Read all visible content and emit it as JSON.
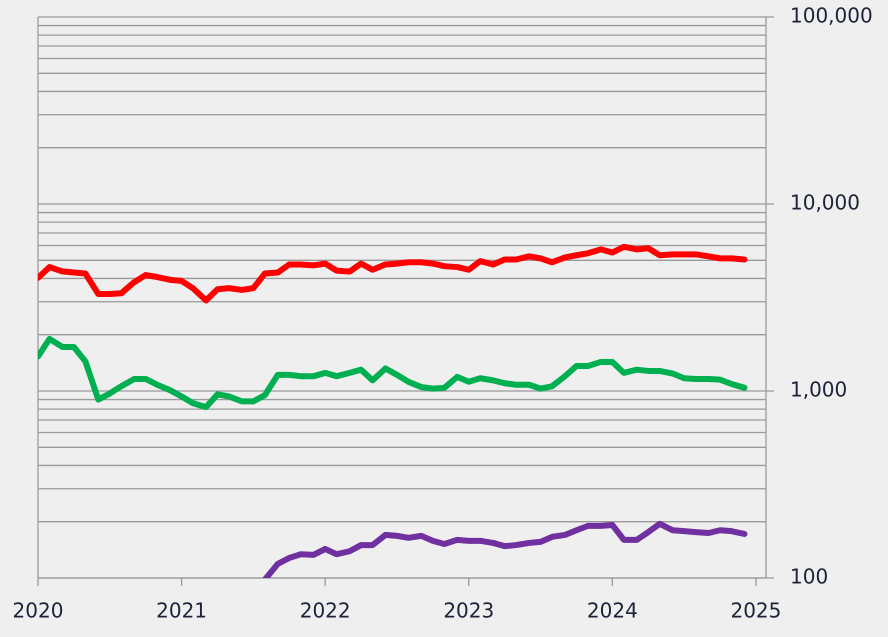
{
  "chart_data": {
    "type": "line",
    "log_y": true,
    "grid": true,
    "y_axis_side": "right",
    "xlim": [
      2020,
      2025.07
    ],
    "xticks": [
      2020,
      2021,
      2022,
      2023,
      2024,
      2025
    ],
    "ylim": [
      100,
      100000
    ],
    "yticks": [
      100,
      {
        "value": 1000,
        "label": "1,000"
      },
      {
        "value": 10000,
        "label": "10,000"
      },
      {
        "value": 100000,
        "label": "100,000"
      }
    ],
    "minor_yticks": [
      200,
      300,
      400,
      500,
      600,
      700,
      800,
      900,
      2000,
      3000,
      4000,
      5000,
      6000,
      7000,
      8000,
      9000,
      20000,
      30000,
      40000,
      50000,
      60000,
      70000,
      80000,
      90000
    ],
    "x": [
      2020,
      2020.08,
      2020.17,
      2020.25,
      2020.33,
      2020.42,
      2020.5,
      2020.58,
      2020.67,
      2020.75,
      2020.83,
      2020.92,
      2021,
      2021.08,
      2021.17,
      2021.25,
      2021.33,
      2021.42,
      2021.5,
      2021.58,
      2021.67,
      2021.75,
      2021.83,
      2021.92,
      2022,
      2022.08,
      2022.17,
      2022.25,
      2022.33,
      2022.42,
      2022.5,
      2022.58,
      2022.67,
      2022.75,
      2022.83,
      2022.92,
      2023,
      2023.08,
      2023.17,
      2023.25,
      2023.33,
      2023.42,
      2023.5,
      2023.58,
      2023.67,
      2023.75,
      2023.83,
      2023.92,
      2024,
      2024.08,
      2024.17,
      2024.25,
      2024.33,
      2024.42,
      2024.5,
      2024.58,
      2024.67,
      2024.75,
      2024.83,
      2024.92
    ],
    "series": [
      {
        "color": "#ff0000",
        "values": [
          4030,
          4600,
          4360,
          4300,
          4250,
          3300,
          3300,
          3330,
          3820,
          4170,
          4070,
          3930,
          3880,
          3540,
          3050,
          3500,
          3550,
          3470,
          3550,
          4250,
          4300,
          4750,
          4750,
          4700,
          4800,
          4400,
          4350,
          4800,
          4450,
          4750,
          4800,
          4880,
          4880,
          4800,
          4650,
          4600,
          4450,
          4950,
          4750,
          5050,
          5050,
          5250,
          5120,
          4880,
          5180,
          5320,
          5450,
          5720,
          5500,
          5900,
          5720,
          5800,
          5320,
          5380,
          5380,
          5380,
          5250,
          5120,
          5120,
          5050
        ]
      },
      {
        "color": "#00b050",
        "values": [
          1530,
          1900,
          1720,
          1720,
          1440,
          900,
          970,
          1060,
          1160,
          1160,
          1080,
          1010,
          935,
          860,
          820,
          960,
          935,
          880,
          880,
          950,
          1220,
          1220,
          1200,
          1200,
          1250,
          1200,
          1250,
          1300,
          1140,
          1320,
          1220,
          1120,
          1050,
          1030,
          1040,
          1190,
          1120,
          1170,
          1140,
          1100,
          1080,
          1080,
          1030,
          1060,
          1200,
          1360,
          1360,
          1430,
          1430,
          1250,
          1300,
          1280,
          1280,
          1240,
          1170,
          1160,
          1160,
          1150,
          1090,
          1040
        ]
      },
      {
        "color": "#7030a0",
        "values": [
          null,
          null,
          null,
          null,
          null,
          null,
          null,
          null,
          null,
          null,
          null,
          null,
          null,
          null,
          null,
          null,
          null,
          null,
          null,
          98,
          119,
          128,
          134,
          133,
          143,
          134,
          139,
          150,
          150,
          170,
          168,
          164,
          168,
          158,
          152,
          160,
          158,
          158,
          154,
          148,
          150,
          154,
          156,
          166,
          170,
          180,
          190,
          190,
          192,
          160,
          160,
          176,
          195,
          180,
          178,
          176,
          174,
          180,
          178,
          172
        ]
      }
    ]
  }
}
